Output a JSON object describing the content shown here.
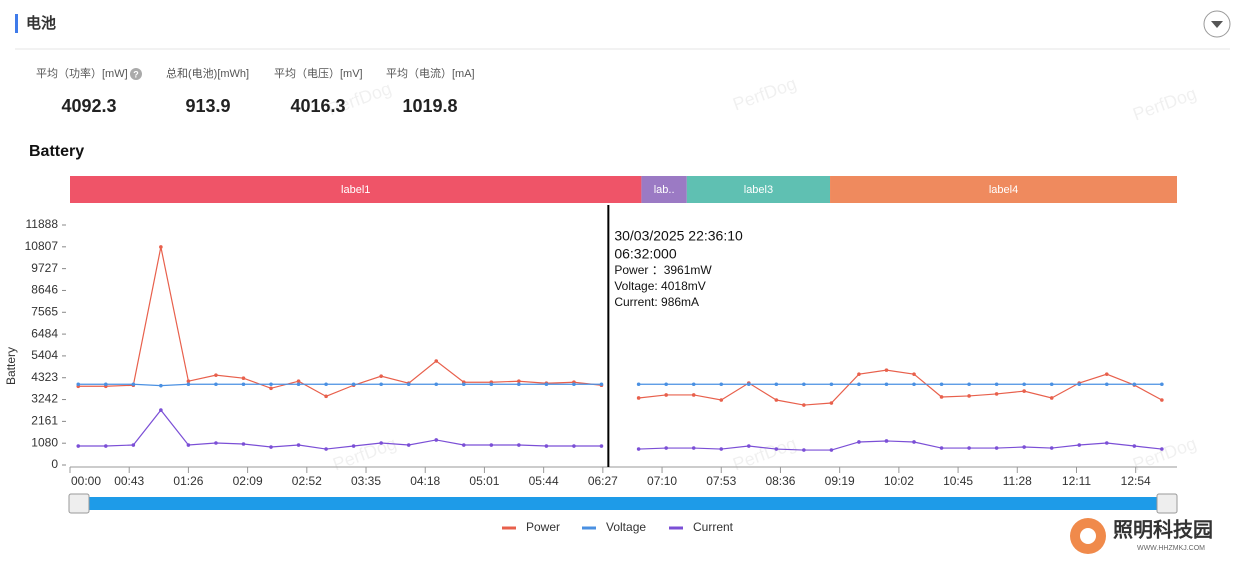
{
  "header": {
    "title": "电池"
  },
  "stats": [
    {
      "label": "平均（功率）[mW]",
      "value": "4092.3"
    },
    {
      "label": "总和(电池)[mWh]",
      "value": "913.9"
    },
    {
      "label": "平均（电压）[mV]",
      "value": "4016.3"
    },
    {
      "label": "平均（电流）[mA]",
      "value": "1019.8"
    }
  ],
  "watermark": "PerfDog",
  "logo": {
    "name": "照明科技园",
    "url": "WWW.HHZMKJ.COM"
  },
  "chart_data": {
    "type": "line",
    "title": "Battery",
    "y_label": "Battery",
    "bands": [
      {
        "label": "label1",
        "start": 0,
        "end": 415,
        "color": "#ef5468"
      },
      {
        "label": "lab..",
        "start": 415,
        "end": 448,
        "color": "#9b7ac4"
      },
      {
        "label": "label3",
        "start": 448,
        "end": 552,
        "color": "#5fc0b2"
      },
      {
        "label": "label4",
        "start": 552,
        "end": 804,
        "color": "#ef8a5e"
      }
    ],
    "x": [
      6,
      26,
      46,
      66,
      86,
      106,
      126,
      146,
      166,
      186,
      206,
      226,
      246,
      266,
      286,
      306,
      326,
      346,
      366,
      386,
      400,
      413,
      433,
      453,
      473,
      493,
      513,
      533,
      553,
      573,
      593,
      613,
      633,
      653,
      673,
      693,
      713,
      733,
      753,
      773,
      793
    ],
    "series": [
      {
        "name": "Power",
        "color": "#e8604c",
        "values": [
          3900,
          3900,
          3950,
          10800,
          4150,
          4450,
          4300,
          3800,
          4150,
          3400,
          3950,
          4400,
          4050,
          5150,
          4100,
          4100,
          4150,
          4050,
          4100,
          3950,
          null,
          3320,
          3470,
          3470,
          3220,
          4060,
          3220,
          2970,
          3070,
          4500,
          4700,
          4500,
          3370,
          3420,
          3520,
          3660,
          3320,
          4060,
          4500,
          3960,
          3220
        ]
      },
      {
        "name": "Voltage",
        "color": "#4a90e2",
        "values": [
          4000,
          4000,
          4000,
          3930,
          4000,
          4000,
          4000,
          4000,
          4000,
          4000,
          4000,
          4000,
          4000,
          4000,
          4000,
          4000,
          4000,
          4000,
          4000,
          4000,
          null,
          4000,
          4000,
          4000,
          4000,
          4000,
          4000,
          4000,
          4000,
          4000,
          4000,
          4000,
          4000,
          4000,
          4000,
          4000,
          4000,
          4000,
          4000,
          4000,
          4000
        ]
      },
      {
        "name": "Current",
        "color": "#7b4fd6",
        "values": [
          940,
          940,
          990,
          2720,
          990,
          1090,
          1040,
          890,
          990,
          790,
          940,
          1090,
          990,
          1240,
          990,
          990,
          990,
          940,
          940,
          940,
          null,
          790,
          840,
          840,
          790,
          940,
          790,
          740,
          740,
          1140,
          1190,
          1140,
          840,
          840,
          840,
          890,
          840,
          990,
          1090,
          940,
          790
        ]
      }
    ],
    "xlim": [
      0,
      804
    ],
    "xticks": [
      {
        "value": 0,
        "label": "00:00"
      },
      {
        "value": 43,
        "label": "00:43"
      },
      {
        "value": 86,
        "label": "01:26"
      },
      {
        "value": 129,
        "label": "02:09"
      },
      {
        "value": 172,
        "label": "02:52"
      },
      {
        "value": 215,
        "label": "03:35"
      },
      {
        "value": 258,
        "label": "04:18"
      },
      {
        "value": 301,
        "label": "05:01"
      },
      {
        "value": 344,
        "label": "05:44"
      },
      {
        "value": 387,
        "label": "06:27"
      },
      {
        "value": 430,
        "label": "07:10"
      },
      {
        "value": 473,
        "label": "07:53"
      },
      {
        "value": 516,
        "label": "08:36"
      },
      {
        "value": 559,
        "label": "09:19"
      },
      {
        "value": 602,
        "label": "10:02"
      },
      {
        "value": 645,
        "label": "10:45"
      },
      {
        "value": 688,
        "label": "11:28"
      },
      {
        "value": 731,
        "label": "12:11"
      },
      {
        "value": 774,
        "label": "12:54"
      }
    ],
    "ylim": [
      0,
      11888
    ],
    "yticks": [
      0,
      1080,
      2161,
      3242,
      4323,
      5404,
      6484,
      7565,
      8646,
      9727,
      10807,
      11888
    ],
    "cursor": {
      "x": 391,
      "lines": [
        "30/03/2025 22:36:10",
        "06:32:000",
        "Power ：3961mW",
        "Voltage: 4018mV",
        "Current: 986mA"
      ]
    }
  }
}
